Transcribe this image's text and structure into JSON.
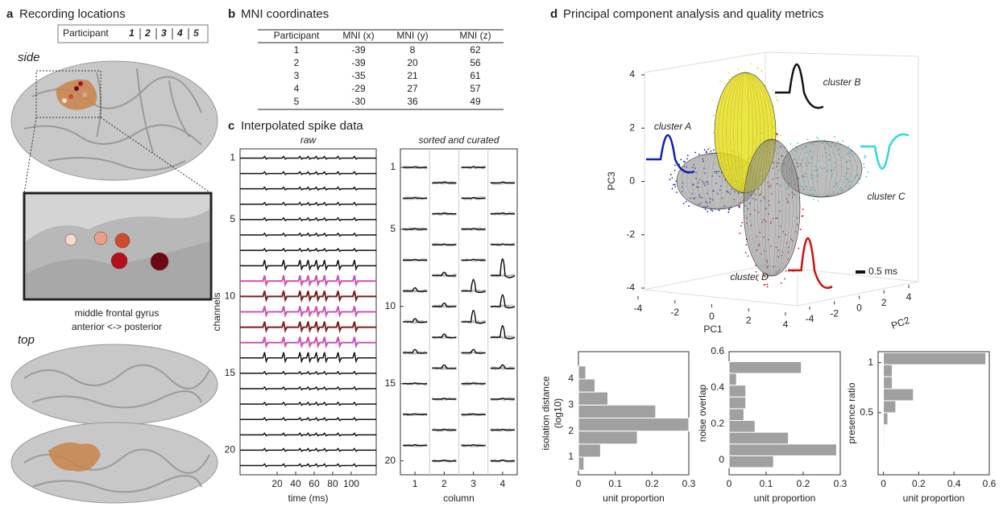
{
  "panels": {
    "a": {
      "letter": "a",
      "title": "Recording locations",
      "side": "side",
      "top": "top",
      "caption": [
        "middle frontal gyrus",
        "anterior <-> posterior"
      ],
      "legend": {
        "label": "Participant",
        "items": [
          {
            "text": "1",
            "color": "#6b0a14"
          },
          {
            "text": "2",
            "color": "#b3101e"
          },
          {
            "text": "3",
            "color": "#cf4b2e"
          },
          {
            "text": "4",
            "color": "#e8a08a"
          },
          {
            "text": "5",
            "color": "#f4dcd4"
          }
        ]
      }
    },
    "b": {
      "letter": "b",
      "title": "MNI coordinates"
    },
    "c": {
      "letter": "c",
      "title": "Interpolated spike data"
    },
    "d": {
      "letter": "d",
      "title": "Principal component analysis and quality metrics"
    }
  },
  "table": {
    "header": [
      "Participant",
      "MNI (x)",
      "MNI (y)",
      "MNI (z)"
    ],
    "rows": [
      [
        1,
        -39,
        8,
        62
      ],
      [
        2,
        -39,
        20,
        56
      ],
      [
        3,
        -35,
        21,
        61
      ],
      [
        4,
        -29,
        27,
        57
      ],
      [
        5,
        -30,
        36,
        49
      ]
    ]
  },
  "chart_data": [
    {
      "type": "traces",
      "title": "raw",
      "xlabel": "time (ms)",
      "ylabel": "channels",
      "xlim": [
        -20,
        127
      ],
      "xticks": [
        20,
        40,
        60,
        80,
        100
      ],
      "ylim": [
        21.6,
        0.4
      ],
      "yticks": [
        1,
        5,
        10,
        15,
        20
      ]
    },
    {
      "type": "sorted",
      "title": "sorted and curated",
      "xlabel": "column",
      "xlim": [
        0.5,
        4.5
      ],
      "xticks": [
        1,
        2,
        3,
        4
      ],
      "ylim": [
        20.9,
        -0.2
      ],
      "yticks": [
        1,
        5,
        10,
        15,
        20
      ]
    },
    {
      "type": "scatter3d",
      "xlabel": "PC1",
      "ylabel": "PC2",
      "zlabel": "PC3",
      "xlim": [
        -4,
        4
      ],
      "xticks": [
        -4,
        -2,
        0,
        2,
        4
      ],
      "ylim": [
        -4,
        4
      ],
      "yticks": [
        -4,
        -2,
        0,
        2,
        4
      ],
      "zlim": [
        -4,
        4
      ],
      "zticks": [
        -4,
        -2,
        0,
        2,
        4
      ],
      "annotations": [
        "cluster A",
        "cluster B",
        "cluster C",
        "cluster D",
        "0.5 ms"
      ],
      "series": [
        {
          "name": "cluster A",
          "color": "#1020b0"
        },
        {
          "name": "cluster B",
          "color": "#e8e020"
        },
        {
          "name": "cluster C",
          "color": "#30d8d8"
        },
        {
          "name": "cluster D",
          "color": "#d01010"
        }
      ]
    },
    {
      "type": "hist",
      "ylabel": [
        "isolation distance",
        "(log10)"
      ],
      "xlabel": "unit proportion",
      "color": "#a0a0a0",
      "xlim": [
        0,
        0.3
      ],
      "xticks": [
        0,
        0.1,
        0.2,
        0.3
      ],
      "ylim": [
        0.32,
        5.05
      ],
      "yticks": [
        1,
        2,
        3,
        4
      ],
      "bins": [
        0.5,
        1,
        1.5,
        2,
        2.5,
        3,
        3.5,
        4,
        4.5
      ],
      "counts": [
        0.015,
        0.06,
        0.16,
        0.3,
        0.21,
        0.08,
        0.045,
        0.02
      ]
    },
    {
      "type": "hist",
      "ylabel": [
        "noise overlap"
      ],
      "xlabel": "unit proportion",
      "color": "#a0a0a0",
      "xlim": [
        0,
        0.3
      ],
      "xticks": [
        0,
        0.1,
        0.2,
        0.3
      ],
      "ylim": [
        -0.08,
        0.6
      ],
      "yticks": [
        0,
        0.2,
        0.4,
        0.6
      ],
      "bins": [
        -0.04,
        0.025,
        0.09,
        0.155,
        0.22,
        0.285,
        0.35,
        0.415,
        0.48,
        0.545
      ],
      "counts": [
        0.12,
        0.29,
        0.16,
        0.07,
        0.04,
        0.045,
        0.045,
        0.02,
        0.195
      ]
    },
    {
      "type": "hist",
      "ylabel": [
        "presence ratio"
      ],
      "xlabel": "unit proportion",
      "color": "#a0a0a0",
      "xlim": [
        -0.03,
        0.6
      ],
      "xticks": [
        0,
        0.2,
        0.4,
        0.6
      ],
      "ylim": [
        -0.12,
        1.11
      ],
      "yticks": [
        0.5,
        1
      ],
      "bins": [
        0.14,
        0.26,
        0.38,
        0.5,
        0.62,
        0.74,
        0.86,
        0.98,
        1.1
      ],
      "counts": [
        0.005,
        0.005,
        0.025,
        0.07,
        0.17,
        0.05,
        0.05,
        0.58
      ]
    }
  ]
}
